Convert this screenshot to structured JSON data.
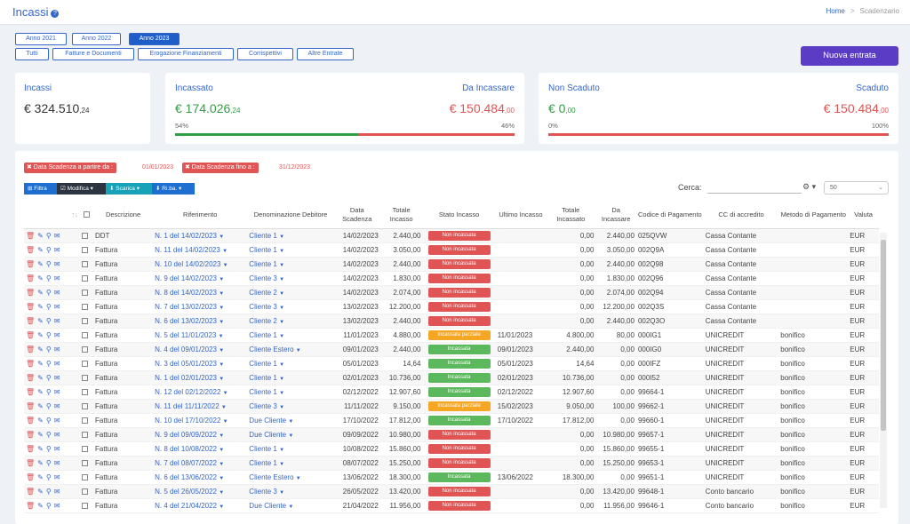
{
  "header": {
    "title": "Incassi",
    "home": "Home",
    "sep": ">",
    "current": "Scadenzario"
  },
  "years": [
    "Anno 2021",
    "Anno 2022",
    "Anno 2023"
  ],
  "filters": [
    "Tutti",
    "Fatture e Documenti",
    "Erogazione Finanziamenti",
    "Corrispettivi",
    "Altre Entrate"
  ],
  "new_button": "Nuova entrata",
  "cards": {
    "incassi": {
      "label": "Incassi",
      "amount": "€ 324.510",
      "cents": ",24"
    },
    "incassato": {
      "label": "Incassato",
      "amount": "€ 174.026",
      "cents": ",24",
      "pct": "54%",
      "fill": 0.54
    },
    "da_incassare": {
      "label": "Da Incassare",
      "amount": "€ 150.484",
      "cents": ",00",
      "pct": "46%"
    },
    "non_scaduto": {
      "label": "Non Scaduto",
      "amount": "€ 0",
      "cents": ",00",
      "pct": "0%",
      "fill": 0
    },
    "scaduto": {
      "label": "Scaduto",
      "amount": "€ 150.484",
      "cents": ",00",
      "pct": "100%"
    }
  },
  "chips": [
    {
      "label": "✖ Data Scadenza a partire da :",
      "value": "01/01/2023"
    },
    {
      "label": "✖ Data Scadenza fino a :",
      "value": "31/12/2023"
    }
  ],
  "toolbar": {
    "filtra": "⊞ Filtra",
    "modifica": "☑ Modifica ▾",
    "scarica": "⬇ Scarica ▾",
    "riba": "⬇ Ri.ba. ▾",
    "search_label": "Cerca:",
    "page_len": "50"
  },
  "columns": [
    "Descrizione",
    "Riferimento",
    "Denominazione Debitore",
    "Data Scadenza",
    "Totale Incasso",
    "Stato Incasso",
    "Ultimo Incasso",
    "Totale Incassato",
    "Da Incassare",
    "Codice di Pagamento",
    "CC di accredito",
    "Metodo di Pagamento",
    "Valuta"
  ],
  "status_colors": {
    "Non incassata": "#e05454",
    "Incassata parziale": "#f5a623",
    "Incassata": "#5cb85c"
  },
  "rows": [
    [
      "DDT",
      "N. 1 del 14/02/2023",
      "Cliente 1",
      "14/02/2023",
      "2.440,00",
      "Non incassata",
      "",
      "0,00",
      "2.440,00",
      "025QVW",
      "Cassa Contante",
      "",
      "EUR"
    ],
    [
      "Fattura",
      "N. 11 del 14/02/2023",
      "Cliente 1",
      "14/02/2023",
      "3.050,00",
      "Non incassata",
      "",
      "0,00",
      "3.050,00",
      "002Q9A",
      "Cassa Contante",
      "",
      "EUR"
    ],
    [
      "Fattura",
      "N. 10 del 14/02/2023",
      "Cliente 1",
      "14/02/2023",
      "2.440,00",
      "Non incassata",
      "",
      "0,00",
      "2.440,00",
      "002Q98",
      "Cassa Contante",
      "",
      "EUR"
    ],
    [
      "Fattura",
      "N. 9 del 14/02/2023",
      "Cliente 3",
      "14/02/2023",
      "1.830,00",
      "Non incassata",
      "",
      "0,00",
      "1.830,00",
      "002Q96",
      "Cassa Contante",
      "",
      "EUR"
    ],
    [
      "Fattura",
      "N. 8 del 14/02/2023",
      "Cliente 2",
      "14/02/2023",
      "2.074,00",
      "Non incassata",
      "",
      "0,00",
      "2.074,00",
      "002Q94",
      "Cassa Contante",
      "",
      "EUR"
    ],
    [
      "Fattura",
      "N. 7 del 13/02/2023",
      "Cliente 3",
      "13/02/2023",
      "12.200,00",
      "Non incassata",
      "",
      "0,00",
      "12.200,00",
      "002Q3S",
      "Cassa Contante",
      "",
      "EUR"
    ],
    [
      "Fattura",
      "N. 6 del 13/02/2023",
      "Cliente 2",
      "13/02/2023",
      "2.440,00",
      "Non incassata",
      "",
      "0,00",
      "2.440,00",
      "002Q3O",
      "Cassa Contante",
      "",
      "EUR"
    ],
    [
      "Fattura",
      "N. 5 del 11/01/2023",
      "Cliente 1",
      "11/01/2023",
      "4.880,00",
      "Incassata parziale",
      "11/01/2023",
      "4.800,00",
      "80,00",
      "000IG1",
      "UNICREDIT",
      "bonifico",
      "EUR"
    ],
    [
      "Fattura",
      "N. 4 del 09/01/2023",
      "Cliente Estero",
      "09/01/2023",
      "2.440,00",
      "Incassata",
      "09/01/2023",
      "2.440,00",
      "0,00",
      "000IG0",
      "UNICREDIT",
      "bonifico",
      "EUR"
    ],
    [
      "Fattura",
      "N. 3 del 05/01/2023",
      "Cliente 1",
      "05/01/2023",
      "14,64",
      "Incassata",
      "05/01/2023",
      "14,64",
      "0,00",
      "000IFZ",
      "UNICREDIT",
      "bonifico",
      "EUR"
    ],
    [
      "Fattura",
      "N. 1 del 02/01/2023",
      "Cliente 1",
      "02/01/2023",
      "10.736,00",
      "Incassata",
      "02/01/2023",
      "10.736,00",
      "0,00",
      "000I52",
      "UNICREDIT",
      "bonifico",
      "EUR"
    ],
    [
      "Fattura",
      "N. 12 del 02/12/2022",
      "Cliente 1",
      "02/12/2022",
      "12.907,60",
      "Incassata",
      "02/12/2022",
      "12.907,60",
      "0,00",
      "99664-1",
      "UNICREDIT",
      "bonifico",
      "EUR"
    ],
    [
      "Fattura",
      "N. 11 del 11/11/2022",
      "Cliente 3",
      "11/11/2022",
      "9.150,00",
      "Incassata parziale",
      "15/02/2023",
      "9.050,00",
      "100,00",
      "99662-1",
      "UNICREDIT",
      "bonifico",
      "EUR"
    ],
    [
      "Fattura",
      "N. 10 del 17/10/2022",
      "Due Cliente",
      "17/10/2022",
      "17.812,00",
      "Incassata",
      "17/10/2022",
      "17.812,00",
      "0,00",
      "99660-1",
      "UNICREDIT",
      "bonifico",
      "EUR"
    ],
    [
      "Fattura",
      "N. 9 del 09/09/2022",
      "Due Cliente",
      "09/09/2022",
      "10.980,00",
      "Non incassata",
      "",
      "0,00",
      "10.980,00",
      "99657-1",
      "UNICREDIT",
      "bonifico",
      "EUR"
    ],
    [
      "Fattura",
      "N. 8 del 10/08/2022",
      "Cliente 1",
      "10/08/2022",
      "15.860,00",
      "Non incassata",
      "",
      "0,00",
      "15.860,00",
      "99655-1",
      "UNICREDIT",
      "bonifico",
      "EUR"
    ],
    [
      "Fattura",
      "N. 7 del 08/07/2022",
      "Cliente 1",
      "08/07/2022",
      "15.250,00",
      "Non incassata",
      "",
      "0,00",
      "15.250,00",
      "99653-1",
      "UNICREDIT",
      "bonifico",
      "EUR"
    ],
    [
      "Fattura",
      "N. 6 del 13/06/2022",
      "Cliente Estero",
      "13/06/2022",
      "18.300,00",
      "Incassata",
      "13/06/2022",
      "18.300,00",
      "0,00",
      "99651-1",
      "UNICREDIT",
      "bonifico",
      "EUR"
    ],
    [
      "Fattura",
      "N. 5 del 26/05/2022",
      "Cliente 3",
      "26/05/2022",
      "13.420,00",
      "Non incassata",
      "",
      "0,00",
      "13.420,00",
      "99648-1",
      "Conto bancario",
      "bonifico",
      "EUR"
    ],
    [
      "Fattura",
      "N. 4 del 21/04/2022",
      "Due Cliente",
      "21/04/2022",
      "11.956,00",
      "Non incassata",
      "",
      "0,00",
      "11.956,00",
      "99646-1",
      "Conto bancario",
      "bonifico",
      "EUR"
    ]
  ]
}
